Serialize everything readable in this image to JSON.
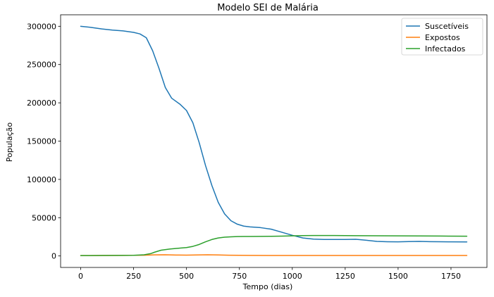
{
  "chart_data": {
    "type": "line",
    "title": "Modelo SEI de Malária",
    "xlabel": "Tempo (dias)",
    "ylabel": "População",
    "xlim": [
      -95,
      1920
    ],
    "ylim": [
      -15000,
      315000
    ],
    "xticks": [
      0,
      250,
      500,
      750,
      1000,
      1250,
      1500,
      1750
    ],
    "yticks": [
      0,
      50000,
      100000,
      150000,
      200000,
      250000,
      300000
    ],
    "grid": false,
    "legend_position": "top-right",
    "colors": {
      "Suscetíveis": "#1f77b4",
      "Expostos": "#ff7f0e",
      "Infectados": "#2ca02c"
    },
    "series": [
      {
        "name": "Suscetíveis",
        "x": [
          0,
          50,
          100,
          150,
          200,
          250,
          280,
          310,
          340,
          370,
          400,
          430,
          470,
          500,
          530,
          560,
          590,
          620,
          650,
          680,
          710,
          740,
          770,
          800,
          850,
          900,
          950,
          1000,
          1050,
          1100,
          1150,
          1200,
          1250,
          1300,
          1350,
          1400,
          1450,
          1500,
          1550,
          1600,
          1650,
          1700,
          1750,
          1825
        ],
        "y": [
          300000,
          298500,
          296500,
          295000,
          294000,
          292000,
          290000,
          285000,
          268000,
          245000,
          220000,
          206000,
          198000,
          190000,
          174000,
          148000,
          118000,
          92000,
          70000,
          55000,
          46000,
          41500,
          39000,
          38000,
          37000,
          35000,
          31000,
          27000,
          23500,
          22000,
          21500,
          21500,
          21500,
          21800,
          20500,
          19000,
          18600,
          18400,
          18800,
          19000,
          18700,
          18500,
          18400,
          18300
        ]
      },
      {
        "name": "Expostos",
        "x": [
          0,
          100,
          200,
          250,
          300,
          350,
          400,
          450,
          500,
          550,
          600,
          650,
          700,
          750,
          800,
          900,
          1000,
          1100,
          1200,
          1300,
          1400,
          1500,
          1600,
          1700,
          1825
        ],
        "y": [
          500,
          600,
          700,
          800,
          1000,
          1400,
          1500,
          1200,
          1100,
          1300,
          1500,
          1300,
          1000,
          800,
          700,
          650,
          600,
          600,
          600,
          600,
          600,
          600,
          600,
          600,
          600
        ]
      },
      {
        "name": "Infectados",
        "x": [
          0,
          100,
          200,
          250,
          300,
          330,
          350,
          380,
          420,
          460,
          500,
          530,
          560,
          590,
          620,
          650,
          680,
          710,
          740,
          770,
          800,
          850,
          900,
          950,
          1000,
          1050,
          1100,
          1150,
          1200,
          1300,
          1400,
          1500,
          1600,
          1700,
          1825
        ],
        "y": [
          500,
          600,
          700,
          800,
          1500,
          3000,
          5000,
          7500,
          9000,
          10000,
          11000,
          12500,
          15000,
          18500,
          21500,
          23500,
          24500,
          25000,
          25300,
          25400,
          25500,
          25600,
          25700,
          25900,
          26200,
          26600,
          26700,
          26700,
          26700,
          26500,
          26400,
          26300,
          26100,
          26000,
          25800
        ]
      }
    ]
  }
}
